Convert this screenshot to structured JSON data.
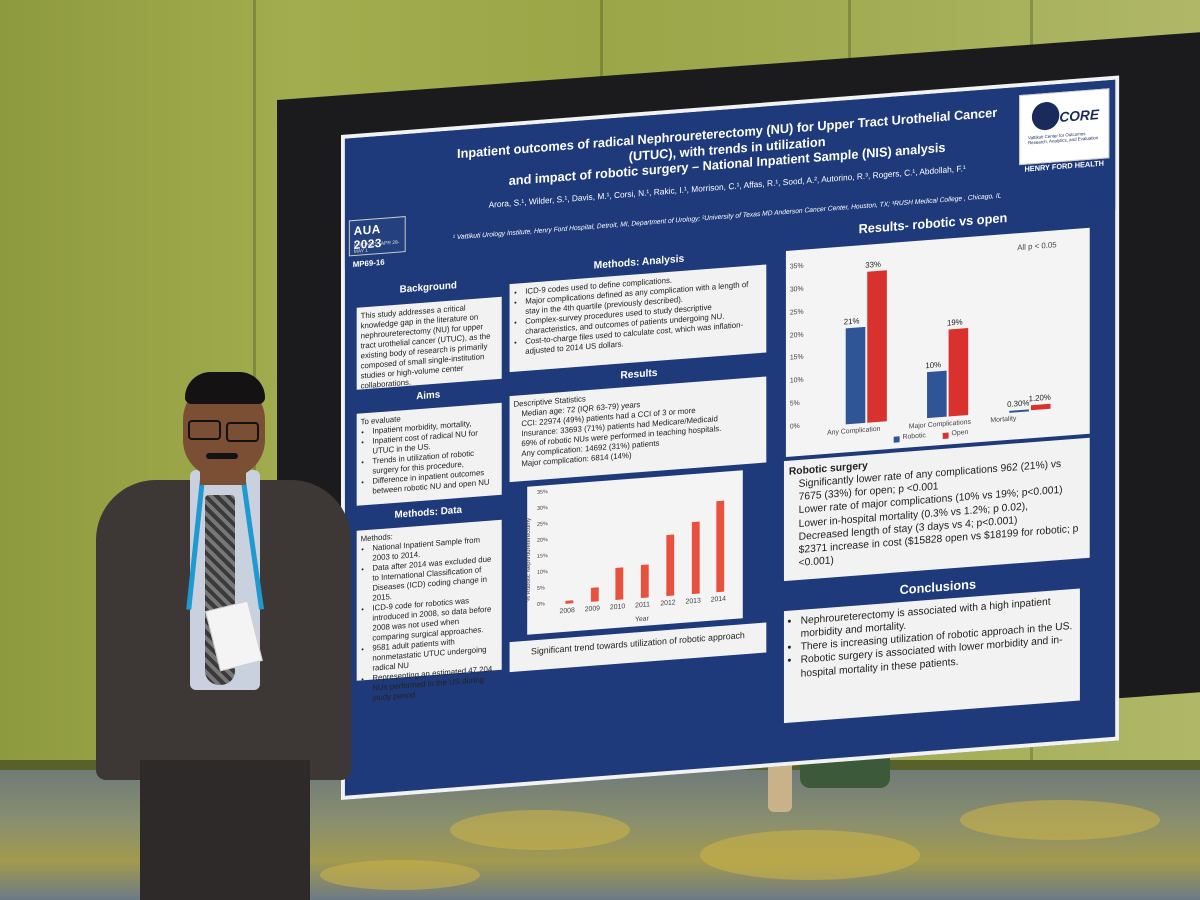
{
  "poster": {
    "title_line1": "Inpatient outcomes of radical Nephroureterectomy (NU) for Upper Tract Urothelial Cancer (UTUC), with trends in utilization",
    "title_line2": "and impact of robotic surgery – National Inpatient Sample (NIS) analysis",
    "authors_line1": "Arora, S.¹, Wilder, S.¹, Davis, M.¹, Corsi, N.¹, Rakic, I.¹, Morrison, C.¹, Affas, R.¹, Sood, A.², Autorino, R.³, Rogers, C.¹, Abdollah, F.¹",
    "affiliations": "¹ Vattikuti Urology Institute, Henry Ford Hospital, Detroit, MI, Department of Urology; ²University of Texas MD Anderson Cancer Center, Houston, TX; ³RUSH Medical College , Chicago, IL",
    "conference_logo": "AUA 2023",
    "conference_sub": "CHICAGO • APR 28-MAY 1",
    "poster_code": "MP69-16",
    "core_logo": "CORE",
    "core_sub": "Vattikuti Center for Outcomes Research, Analytics, and Evaluation",
    "hf_logo": "HENRY FORD HEALTH"
  },
  "background": {
    "title": "Background",
    "text": "This study addresses a critical knowledge gap in the literature on nephroureterectomy (NU) for upper tract urothelial cancer (UTUC), as the existing body of research is primarily composed of small single-institution studies or high-volume center collaborations."
  },
  "aims": {
    "title": "Aims",
    "intro": "To evaluate",
    "items": [
      "Inpatient morbidity, mortality,",
      "Inpatient cost of radical NU for UTUC in the US.",
      "Trends in utilization of robotic surgery for this procedure,",
      "Difference in inpatient outcomes between robotic NU and open NU"
    ]
  },
  "methods_data": {
    "title": "Methods: Data",
    "intro": "Methods:",
    "items": [
      "National Inpatient Sample from 2003 to 2014.",
      "Data after 2014 was excluded due to International Classification of Diseases (ICD) coding change in 2015.",
      "ICD-9 code for robotics was introduced in 2008, so data before 2008 was not used when comparing surgical approaches.",
      "9581 adult patients with nonmetastatic UTUC undergoing radical NU",
      "Representing an estimated 47,204 NUs performed in the US during study period"
    ]
  },
  "methods_analysis": {
    "title": "Methods: Analysis",
    "items": [
      "ICD-9 codes used to define complications.",
      "Major complications defined as any complication with a length of stay in the 4th quartile (previously described).",
      "Complex-survey procedures used to study descriptive characteristics, and outcomes of patients undergoing NU.",
      "Cost-to-charge files used to calculate cost, which was inflation-adjusted to 2014 US dollars."
    ]
  },
  "results": {
    "title": "Results",
    "intro": "Descriptive Statistics",
    "items": [
      "Median age: 72 (IQR 63-79) years",
      "CCI: 22974 (49%) patients had a CCI of 3 or more",
      "Insurance: 33693 (71%) patients had Medicare/Medicaid",
      "69% of robotic NUs were performed in teaching hospitals.",
      "Any complication: 14692 (31%) patients",
      "Major complication: 6814 (14%)"
    ],
    "trend_caption": "Significant trend towards utilization of robotic approach"
  },
  "robotic_open": {
    "title": "Results- robotic vs open",
    "note": "All p < 0.05",
    "heading": "Robotic surgery",
    "items": [
      "Significantly lower rate of any complications 962 (21%) vs 7675 (33%) for open; p <0.001",
      "Lower rate of major complications (10% vs 19%; p<0.001)",
      "Lower in-hospital mortality (0.3% vs 1.2%; p 0.02),",
      "Decreased length of stay (3 days vs 4; p<0.001)",
      "$2371 increase in cost ($15828 open vs $18199 for robotic; p <0.001)"
    ]
  },
  "conclusions": {
    "title": "Conclusions",
    "items": [
      "Nephroureterectomy is associated with a high inpatient morbidity and mortality.",
      "There is increasing utilization of robotic approach in the US.",
      "Robotic surgery is associated with lower morbidity and in-hospital mortality in these patients."
    ]
  },
  "chart_data": [
    {
      "type": "bar",
      "title": "",
      "categories": [
        "Any Complication",
        "Major Complications",
        "Mortality"
      ],
      "series": [
        {
          "name": "Robotic",
          "values": [
            21,
            10,
            0.3
          ],
          "labels": [
            "21%",
            "10%",
            "0.30%"
          ]
        },
        {
          "name": "Open",
          "values": [
            33,
            19,
            1.2
          ],
          "labels": [
            "33%",
            "19%",
            "1.20%"
          ]
        }
      ],
      "ylim": [
        0,
        35
      ],
      "yticks": [
        "0%",
        "5%",
        "10%",
        "15%",
        "20%",
        "25%",
        "30%",
        "35%"
      ],
      "colors": {
        "robotic": "#2f5596",
        "open": "#d9312e"
      },
      "legend": "bottom"
    },
    {
      "type": "bar",
      "categories": [
        "2008",
        "2009",
        "2010",
        "2011",
        "2012",
        "2013",
        "2014"
      ],
      "values": [
        0.8,
        4.5,
        10,
        10.2,
        19,
        22.5,
        28.5
      ],
      "ylabel": "% Robotic Nephroureterectomy",
      "xlabel": "Year",
      "ylim": [
        0,
        35
      ],
      "yticks": [
        "0%",
        "5%",
        "10%",
        "15%",
        "20%",
        "25%",
        "30%",
        "35%"
      ],
      "color": "#e8513d"
    }
  ]
}
